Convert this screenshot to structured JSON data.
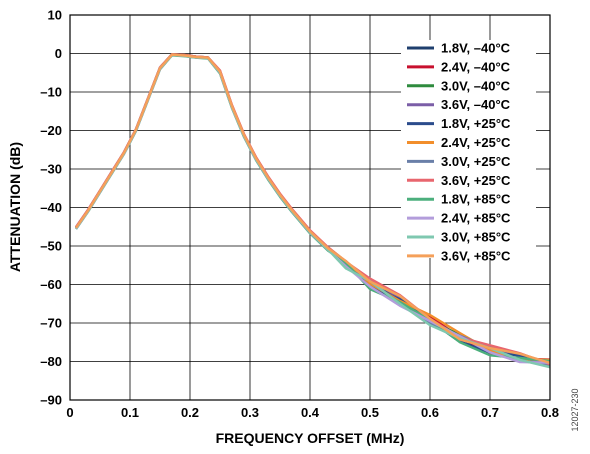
{
  "figure_id": "12027-230",
  "chart_data": {
    "type": "line",
    "title": "",
    "xlabel": "FREQUENCY OFFSET (MHz)",
    "ylabel": "ATTENUATION (dB)",
    "xlim": [
      0,
      0.8
    ],
    "ylim": [
      -90,
      10
    ],
    "xticks": [
      0,
      0.1,
      0.2,
      0.3,
      0.4,
      0.5,
      0.6,
      0.7,
      0.8
    ],
    "xtick_labels": [
      "0",
      "0.1",
      "0.2",
      "0.3",
      "0.4",
      "0.5",
      "0.6",
      "0.7",
      "0.8"
    ],
    "yticks": [
      10,
      0,
      -10,
      -20,
      -30,
      -40,
      -50,
      -60,
      -70,
      -80,
      -90
    ],
    "ytick_labels": [
      "10",
      "0",
      "–10",
      "–20",
      "–30",
      "–40",
      "–50",
      "–60",
      "–70",
      "–80",
      "–90"
    ],
    "grid": true,
    "legend_position": "top-right",
    "x": [
      0.01,
      0.03,
      0.05,
      0.07,
      0.09,
      0.11,
      0.13,
      0.15,
      0.17,
      0.19,
      0.21,
      0.23,
      0.25,
      0.27,
      0.29,
      0.31,
      0.33,
      0.35,
      0.37,
      0.4,
      0.43,
      0.46,
      0.5,
      0.55,
      0.6,
      0.65,
      0.7,
      0.75,
      0.8
    ],
    "series": [
      {
        "name": "1.8V, –40°C",
        "color": "#1f3f6e",
        "width": 2.4,
        "y": [
          -45.5,
          -41,
          -36,
          -31,
          -26,
          -20,
          -12,
          -4,
          -0.4,
          -0.6,
          -1,
          -1.2,
          -5,
          -14,
          -21.5,
          -27.5,
          -32.5,
          -37,
          -41,
          -46.5,
          -51,
          -55,
          -60,
          -64.5,
          -69.5,
          -74,
          -77,
          -79,
          -80.5
        ]
      },
      {
        "name": "2.4V, –40°C",
        "color": "#c8102e",
        "width": 2.4,
        "y": [
          -45.3,
          -40.8,
          -35.8,
          -30.8,
          -25.8,
          -19.8,
          -11.8,
          -3.8,
          -0.3,
          -0.5,
          -0.9,
          -1.1,
          -4.8,
          -13.8,
          -21.3,
          -27.3,
          -32.3,
          -36.8,
          -40.8,
          -46.3,
          -50.8,
          -54.6,
          -59.6,
          -64.2,
          -69.3,
          -73.8,
          -76.9,
          -79.1,
          -80.4
        ]
      },
      {
        "name": "3.0V, –40°C",
        "color": "#2e8b3e",
        "width": 2.4,
        "y": [
          -45.2,
          -40.7,
          -35.7,
          -30.7,
          -25.7,
          -19.7,
          -11.7,
          -3.7,
          -0.2,
          -0.4,
          -0.8,
          -1,
          -4.7,
          -13.7,
          -21.2,
          -27.2,
          -32.2,
          -36.7,
          -40.7,
          -46.2,
          -50.7,
          -54.8,
          -59.9,
          -64.4,
          -69.2,
          -73.9,
          -77.1,
          -78.9,
          -80.6
        ]
      },
      {
        "name": "3.6V, –40°C",
        "color": "#7b5ea7",
        "width": 2.4,
        "y": [
          -45.1,
          -40.6,
          -35.6,
          -30.6,
          -25.6,
          -19.6,
          -11.6,
          -3.6,
          -0.2,
          -0.4,
          -0.8,
          -1,
          -4.6,
          -13.6,
          -21.1,
          -27.1,
          -32.1,
          -36.6,
          -40.6,
          -46.1,
          -50.6,
          -54.5,
          -59.5,
          -64,
          -69,
          -73.7,
          -76.8,
          -79,
          -80.5
        ]
      },
      {
        "name": "1.8V, +25°C",
        "color": "#2b4c8c",
        "width": 2.4,
        "y": [
          -45.4,
          -40.9,
          -35.9,
          -30.9,
          -25.9,
          -19.9,
          -11.9,
          -3.9,
          -0.3,
          -0.5,
          -0.9,
          -1.1,
          -4.9,
          -13.9,
          -21.4,
          -27.4,
          -32.4,
          -36.9,
          -40.9,
          -46.4,
          -50.9,
          -54.9,
          -60.1,
          -64.6,
          -69.6,
          -74.1,
          -77.2,
          -79.2,
          -80.6
        ]
      },
      {
        "name": "2.4V, +25°C",
        "color": "#f28e2b",
        "width": 2.4,
        "y": [
          -45.2,
          -40.7,
          -35.7,
          -30.7,
          -25.7,
          -19.7,
          -11.7,
          -3.7,
          -0.2,
          -0.4,
          -0.8,
          -1,
          -4.5,
          -13.5,
          -21,
          -27,
          -32,
          -36.5,
          -40.5,
          -46,
          -50.4,
          -54.2,
          -59.1,
          -63.7,
          -68.6,
          -73.2,
          -76.5,
          -78.8,
          -80.3
        ]
      },
      {
        "name": "3.0V, +25°C",
        "color": "#6a7fa8",
        "width": 2.4,
        "y": [
          -45.3,
          -40.8,
          -35.8,
          -30.8,
          -25.8,
          -19.8,
          -11.8,
          -3.8,
          -0.3,
          -0.5,
          -0.9,
          -1.1,
          -4.8,
          -13.8,
          -21.3,
          -27.3,
          -32.3,
          -36.8,
          -40.8,
          -46.3,
          -50.8,
          -54.7,
          -59.8,
          -64.3,
          -69.4,
          -73.9,
          -77,
          -79.1,
          -80.5
        ]
      },
      {
        "name": "3.6V, +25°C",
        "color": "#e8666e",
        "width": 2.4,
        "y": [
          -45.1,
          -40.6,
          -35.6,
          -30.6,
          -25.6,
          -19.6,
          -11.6,
          -3.6,
          -0.2,
          -0.4,
          -0.8,
          -1,
          -4.4,
          -13.4,
          -20.9,
          -26.9,
          -31.9,
          -36.4,
          -40.4,
          -45.9,
          -50.3,
          -54.1,
          -59,
          -63.5,
          -68.4,
          -73,
          -76.3,
          -78.6,
          -80.2
        ]
      },
      {
        "name": "1.8V, +85°C",
        "color": "#4caf7d",
        "width": 2.4,
        "y": [
          -45.6,
          -41.1,
          -36.1,
          -31.1,
          -26.1,
          -20.1,
          -12.1,
          -4.1,
          -0.5,
          -0.7,
          -1.1,
          -1.3,
          -5.2,
          -14.2,
          -21.7,
          -27.7,
          -32.7,
          -37.2,
          -41.2,
          -46.7,
          -51.2,
          -55.3,
          -60.4,
          -65,
          -70,
          -74.6,
          -77.6,
          -79.5,
          -80.7
        ]
      },
      {
        "name": "2.4V, +85°C",
        "color": "#b39ddb",
        "width": 2.4,
        "y": [
          -45.5,
          -41,
          -36,
          -31,
          -26,
          -20,
          -12,
          -4,
          -0.4,
          -0.6,
          -1,
          -1.2,
          -5,
          -14,
          -21.5,
          -27.5,
          -32.5,
          -37,
          -41,
          -46.5,
          -51,
          -55.1,
          -60.2,
          -64.7,
          -69.8,
          -74.3,
          -77.3,
          -79.3,
          -80.6
        ]
      },
      {
        "name": "3.0V, +85°C",
        "color": "#7fc8b0",
        "width": 2.4,
        "y": [
          -45.4,
          -40.9,
          -35.9,
          -30.9,
          -25.9,
          -19.9,
          -11.9,
          -3.9,
          -0.4,
          -0.6,
          -1,
          -1.2,
          -4.9,
          -13.9,
          -21.4,
          -27.4,
          -32.4,
          -36.9,
          -40.9,
          -46.4,
          -50.9,
          -55,
          -60,
          -64.8,
          -69.7,
          -74.2,
          -77.4,
          -79.4,
          -80.6
        ]
      },
      {
        "name": "3.6V, +85°C",
        "color": "#f5a05a",
        "width": 2.4,
        "y": [
          -45.3,
          -40.8,
          -35.8,
          -30.8,
          -25.8,
          -19.8,
          -11.8,
          -3.8,
          -0.3,
          -0.5,
          -0.9,
          -1.1,
          -4.7,
          -13.7,
          -21.2,
          -27.2,
          -32.2,
          -36.7,
          -40.7,
          -46.2,
          -50.6,
          -54.4,
          -59.3,
          -63.9,
          -68.8,
          -73.4,
          -76.6,
          -78.9,
          -80.3
        ]
      }
    ]
  }
}
